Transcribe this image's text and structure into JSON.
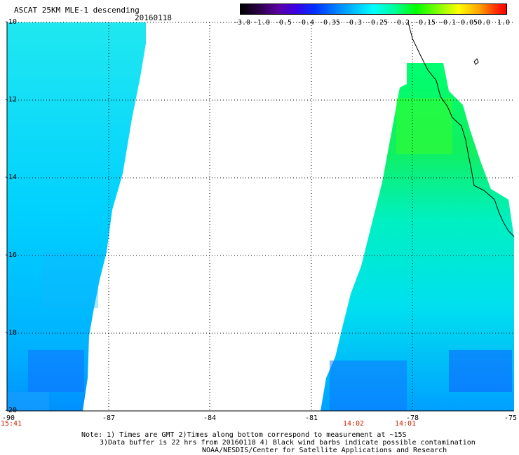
{
  "header": {
    "title": "ASCAT 25KM MLE-1 descending",
    "date": "20160118"
  },
  "colorbar": {
    "labels": [
      "-3.0",
      "-1.0",
      "-0.5",
      "-0.4",
      "-0.35",
      "-0.3",
      "-0.25",
      "-0.2",
      "-0.15",
      "-0.1",
      "-0.05",
      "0.0",
      "1.0"
    ]
  },
  "map": {
    "lat_labels": [
      "-10",
      "-12",
      "-14",
      "-16",
      "-18",
      "-20"
    ],
    "lon_labels": [
      "-90",
      "-87",
      "-84",
      "-81",
      "-78",
      "-75"
    ],
    "time_labels": [
      "15:41",
      "14:02",
      "14:01"
    ],
    "lat_range": [
      -20,
      -10
    ],
    "lon_range": [
      -90,
      -75
    ],
    "grid": "dotted",
    "colors": {
      "cyan": "#00e8ff",
      "green": "#00ff60",
      "blue": "#0070ff"
    }
  },
  "notes": {
    "line1": "Note: 1) Times are GMT 2)Times along bottom correspond to measurement at ~15S",
    "line2": "3)Data buffer is 22 hrs from 20160118 4) Black wind barbs indicate possible contamination",
    "line3": "NOAA/NESDIS/Center for Satellite Applications and Research"
  }
}
